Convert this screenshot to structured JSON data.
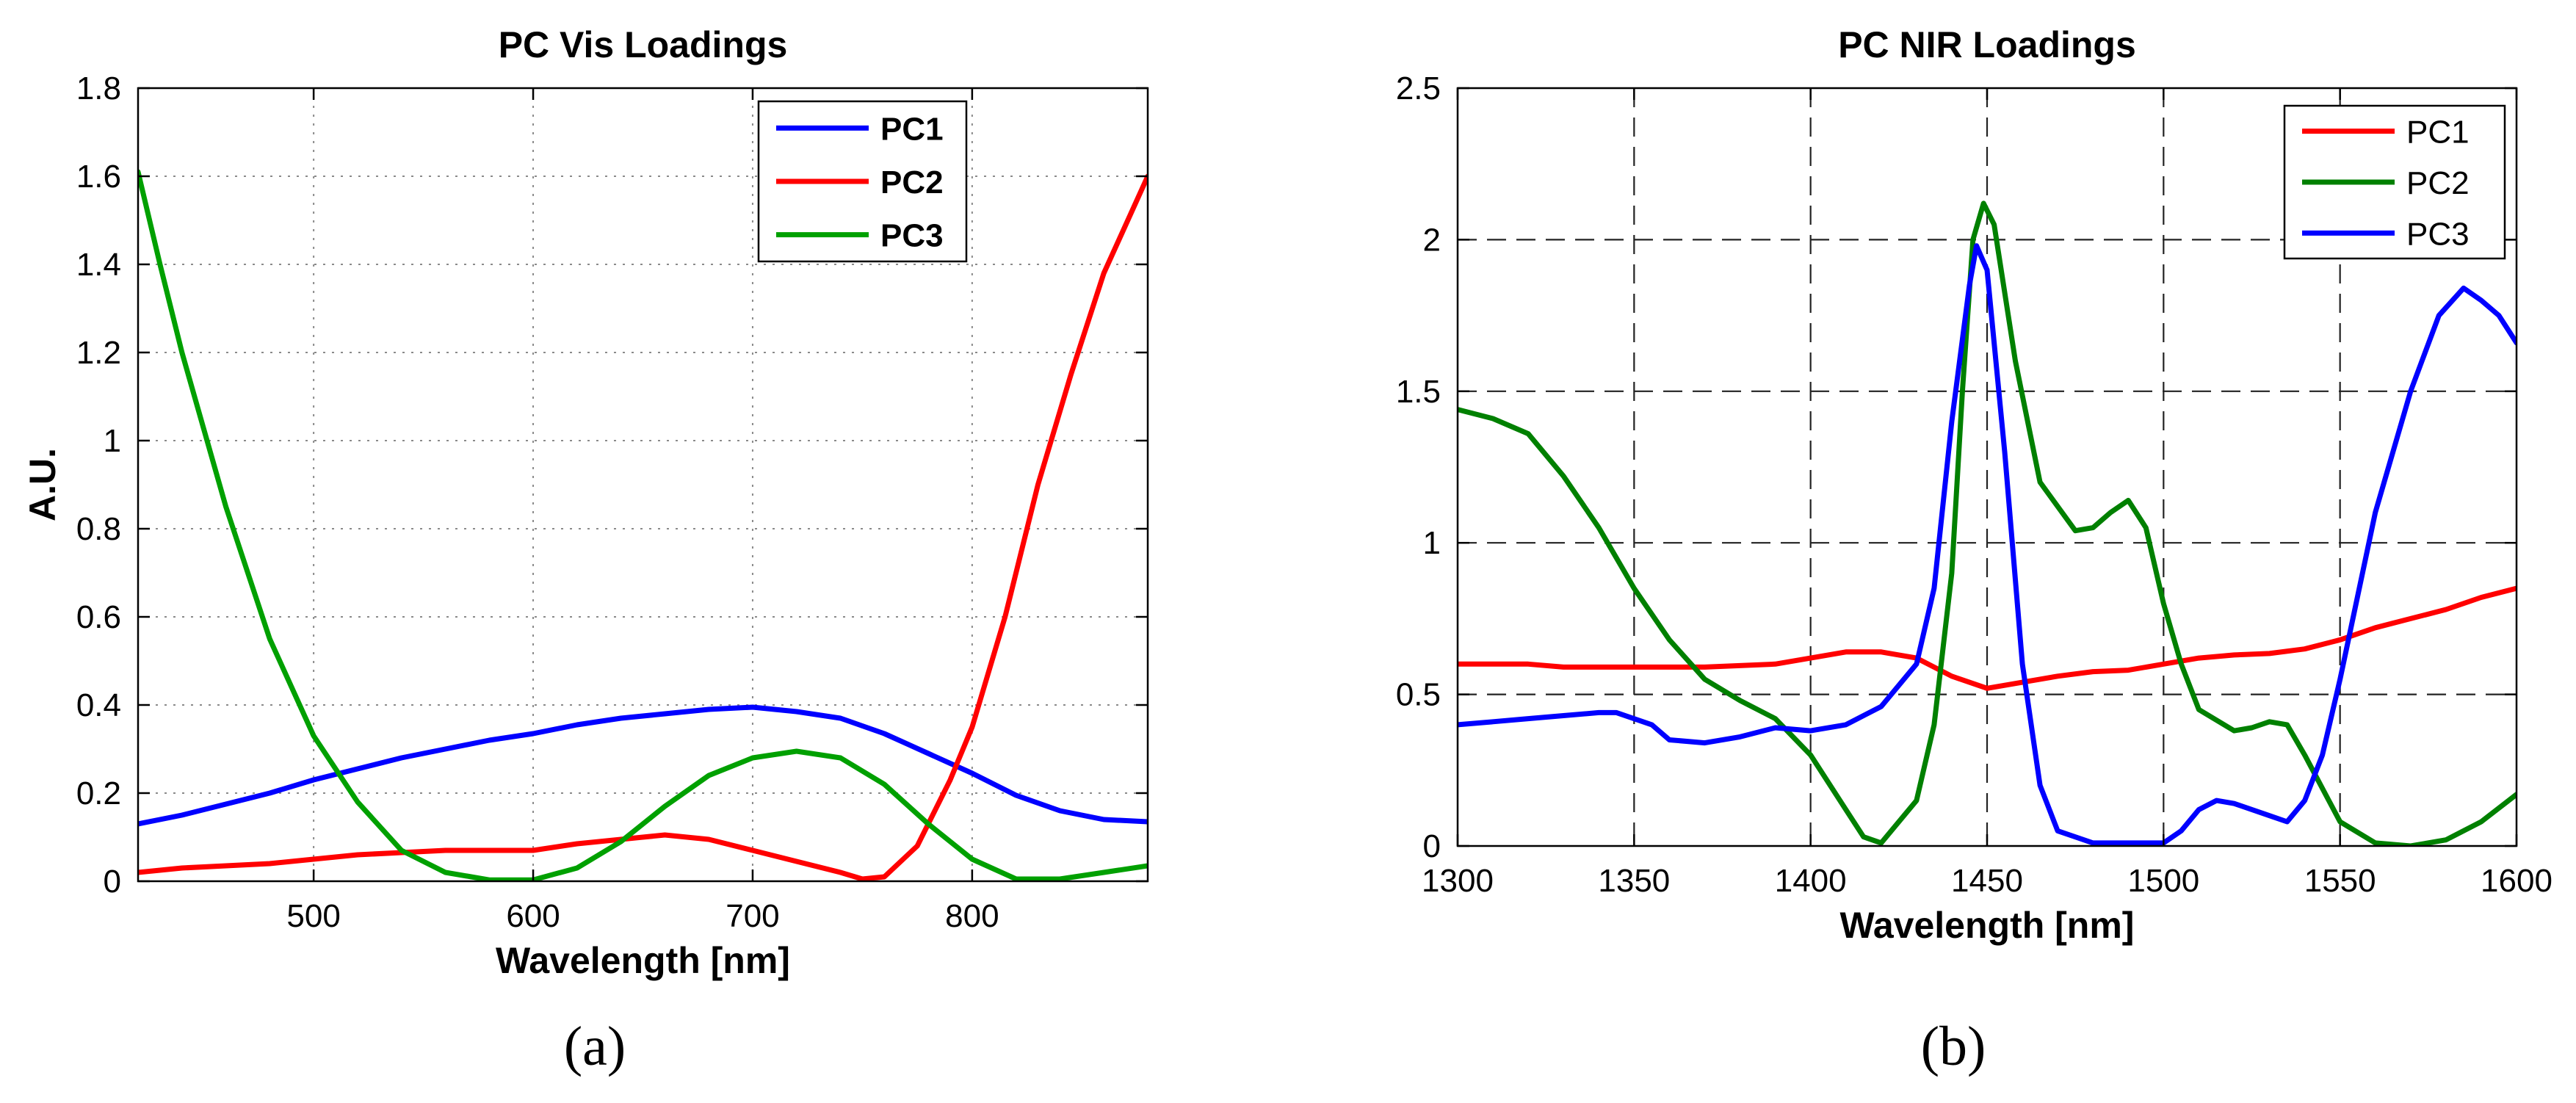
{
  "chart_data": [
    {
      "type": "line",
      "panel_label": "(a)",
      "title": "PC Vis Loadings",
      "xlabel": "Wavelength [nm]",
      "ylabel": "A.U.",
      "xlim": [
        420,
        880
      ],
      "ylim": [
        0,
        1.8
      ],
      "xticks": [
        500,
        600,
        700,
        800
      ],
      "yticks": [
        0,
        0.2,
        0.4,
        0.6,
        0.8,
        1,
        1.2,
        1.4,
        1.6,
        1.8
      ],
      "xtick_labels": [
        "500",
        "600",
        "700",
        "800"
      ],
      "ytick_labels": [
        "0",
        "0.2",
        "0.4",
        "0.6",
        "0.8",
        "1",
        "1.2",
        "1.4",
        "1.6",
        "1.8"
      ],
      "grid": "dotted",
      "legend_position": "top-right",
      "legend_bold": true,
      "series": [
        {
          "name": "PC1",
          "color": "#0000ff",
          "points": [
            [
              420,
              0.13
            ],
            [
              440,
              0.15
            ],
            [
              460,
              0.175
            ],
            [
              480,
              0.2
            ],
            [
              500,
              0.23
            ],
            [
              520,
              0.255
            ],
            [
              540,
              0.28
            ],
            [
              560,
              0.3
            ],
            [
              580,
              0.32
            ],
            [
              600,
              0.335
            ],
            [
              620,
              0.355
            ],
            [
              640,
              0.37
            ],
            [
              660,
              0.38
            ],
            [
              680,
              0.39
            ],
            [
              700,
              0.395
            ],
            [
              720,
              0.385
            ],
            [
              740,
              0.37
            ],
            [
              760,
              0.335
            ],
            [
              780,
              0.29
            ],
            [
              800,
              0.245
            ],
            [
              820,
              0.195
            ],
            [
              840,
              0.16
            ],
            [
              860,
              0.14
            ],
            [
              880,
              0.135
            ]
          ]
        },
        {
          "name": "PC2",
          "color": "#ff0000",
          "points": [
            [
              420,
              0.02
            ],
            [
              440,
              0.03
            ],
            [
              460,
              0.035
            ],
            [
              480,
              0.04
            ],
            [
              500,
              0.05
            ],
            [
              520,
              0.06
            ],
            [
              540,
              0.065
            ],
            [
              560,
              0.07
            ],
            [
              580,
              0.07
            ],
            [
              600,
              0.07
            ],
            [
              620,
              0.085
            ],
            [
              640,
              0.095
            ],
            [
              660,
              0.105
            ],
            [
              680,
              0.095
            ],
            [
              700,
              0.07
            ],
            [
              720,
              0.045
            ],
            [
              740,
              0.02
            ],
            [
              750,
              0.005
            ],
            [
              760,
              0.01
            ],
            [
              775,
              0.08
            ],
            [
              790,
              0.23
            ],
            [
              800,
              0.35
            ],
            [
              815,
              0.6
            ],
            [
              830,
              0.9
            ],
            [
              845,
              1.15
            ],
            [
              860,
              1.38
            ],
            [
              880,
              1.6
            ]
          ]
        },
        {
          "name": "PC3",
          "color": "#00a000",
          "points": [
            [
              420,
              1.61
            ],
            [
              430,
              1.4
            ],
            [
              440,
              1.2
            ],
            [
              460,
              0.85
            ],
            [
              480,
              0.55
            ],
            [
              500,
              0.33
            ],
            [
              520,
              0.18
            ],
            [
              540,
              0.07
            ],
            [
              560,
              0.02
            ],
            [
              580,
              0.003
            ],
            [
              600,
              0.003
            ],
            [
              620,
              0.03
            ],
            [
              640,
              0.09
            ],
            [
              660,
              0.17
            ],
            [
              680,
              0.24
            ],
            [
              700,
              0.28
            ],
            [
              720,
              0.295
            ],
            [
              740,
              0.28
            ],
            [
              760,
              0.22
            ],
            [
              780,
              0.13
            ],
            [
              800,
              0.05
            ],
            [
              820,
              0.005
            ],
            [
              840,
              0.005
            ],
            [
              860,
              0.02
            ],
            [
              880,
              0.035
            ]
          ]
        }
      ]
    },
    {
      "type": "line",
      "panel_label": "(b)",
      "title": "PC NIR Loadings",
      "xlabel": "Wavelength [nm]",
      "ylabel": "",
      "xlim": [
        1300,
        1600
      ],
      "ylim": [
        0,
        2.5
      ],
      "xticks": [
        1300,
        1350,
        1400,
        1450,
        1500,
        1550,
        1600
      ],
      "yticks": [
        0,
        0.5,
        1,
        1.5,
        2,
        2.5
      ],
      "xtick_labels": [
        "1300",
        "1350",
        "1400",
        "1450",
        "1500",
        "1550",
        "1600"
      ],
      "ytick_labels": [
        "0",
        "0.5",
        "1",
        "1.5",
        "2",
        "2.5"
      ],
      "grid": "dashed",
      "legend_position": "top-right",
      "legend_bold": false,
      "series": [
        {
          "name": "PC1",
          "color": "#ff0000",
          "points": [
            [
              1300,
              0.6
            ],
            [
              1320,
              0.6
            ],
            [
              1330,
              0.59
            ],
            [
              1350,
              0.59
            ],
            [
              1370,
              0.59
            ],
            [
              1390,
              0.6
            ],
            [
              1400,
              0.62
            ],
            [
              1410,
              0.64
            ],
            [
              1420,
              0.64
            ],
            [
              1430,
              0.62
            ],
            [
              1440,
              0.56
            ],
            [
              1450,
              0.52
            ],
            [
              1460,
              0.54
            ],
            [
              1470,
              0.56
            ],
            [
              1480,
              0.575
            ],
            [
              1490,
              0.58
            ],
            [
              1500,
              0.6
            ],
            [
              1510,
              0.62
            ],
            [
              1520,
              0.63
            ],
            [
              1530,
              0.635
            ],
            [
              1540,
              0.65
            ],
            [
              1550,
              0.68
            ],
            [
              1560,
              0.72
            ],
            [
              1570,
              0.75
            ],
            [
              1580,
              0.78
            ],
            [
              1590,
              0.82
            ],
            [
              1600,
              0.85
            ]
          ]
        },
        {
          "name": "PC2",
          "color": "#008000",
          "points": [
            [
              1300,
              1.44
            ],
            [
              1310,
              1.41
            ],
            [
              1320,
              1.36
            ],
            [
              1330,
              1.22
            ],
            [
              1340,
              1.05
            ],
            [
              1350,
              0.85
            ],
            [
              1360,
              0.68
            ],
            [
              1370,
              0.55
            ],
            [
              1380,
              0.48
            ],
            [
              1390,
              0.42
            ],
            [
              1400,
              0.3
            ],
            [
              1410,
              0.12
            ],
            [
              1415,
              0.03
            ],
            [
              1420,
              0.01
            ],
            [
              1430,
              0.15
            ],
            [
              1435,
              0.4
            ],
            [
              1440,
              0.9
            ],
            [
              1443,
              1.5
            ],
            [
              1446,
              2.0
            ],
            [
              1449,
              2.12
            ],
            [
              1452,
              2.05
            ],
            [
              1458,
              1.6
            ],
            [
              1465,
              1.2
            ],
            [
              1475,
              1.04
            ],
            [
              1480,
              1.05
            ],
            [
              1485,
              1.1
            ],
            [
              1490,
              1.14
            ],
            [
              1495,
              1.05
            ],
            [
              1500,
              0.8
            ],
            [
              1505,
              0.6
            ],
            [
              1510,
              0.45
            ],
            [
              1520,
              0.38
            ],
            [
              1525,
              0.39
            ],
            [
              1530,
              0.41
            ],
            [
              1535,
              0.4
            ],
            [
              1540,
              0.3
            ],
            [
              1550,
              0.08
            ],
            [
              1560,
              0.01
            ],
            [
              1570,
              0.0
            ],
            [
              1580,
              0.02
            ],
            [
              1590,
              0.08
            ],
            [
              1600,
              0.17
            ]
          ]
        },
        {
          "name": "PC3",
          "color": "#0000ff",
          "points": [
            [
              1300,
              0.4
            ],
            [
              1310,
              0.41
            ],
            [
              1320,
              0.42
            ],
            [
              1330,
              0.43
            ],
            [
              1340,
              0.44
            ],
            [
              1345,
              0.44
            ],
            [
              1355,
              0.4
            ],
            [
              1360,
              0.35
            ],
            [
              1370,
              0.34
            ],
            [
              1380,
              0.36
            ],
            [
              1390,
              0.39
            ],
            [
              1400,
              0.38
            ],
            [
              1410,
              0.4
            ],
            [
              1420,
              0.46
            ],
            [
              1430,
              0.6
            ],
            [
              1435,
              0.85
            ],
            [
              1440,
              1.4
            ],
            [
              1445,
              1.85
            ],
            [
              1447,
              1.98
            ],
            [
              1450,
              1.9
            ],
            [
              1455,
              1.3
            ],
            [
              1460,
              0.6
            ],
            [
              1465,
              0.2
            ],
            [
              1470,
              0.05
            ],
            [
              1480,
              0.01
            ],
            [
              1490,
              0.01
            ],
            [
              1500,
              0.01
            ],
            [
              1505,
              0.05
            ],
            [
              1510,
              0.12
            ],
            [
              1515,
              0.15
            ],
            [
              1520,
              0.14
            ],
            [
              1530,
              0.1
            ],
            [
              1535,
              0.08
            ],
            [
              1540,
              0.15
            ],
            [
              1545,
              0.3
            ],
            [
              1550,
              0.55
            ],
            [
              1560,
              1.1
            ],
            [
              1570,
              1.5
            ],
            [
              1578,
              1.75
            ],
            [
              1585,
              1.84
            ],
            [
              1590,
              1.8
            ],
            [
              1595,
              1.75
            ],
            [
              1600,
              1.66
            ]
          ]
        }
      ]
    }
  ]
}
